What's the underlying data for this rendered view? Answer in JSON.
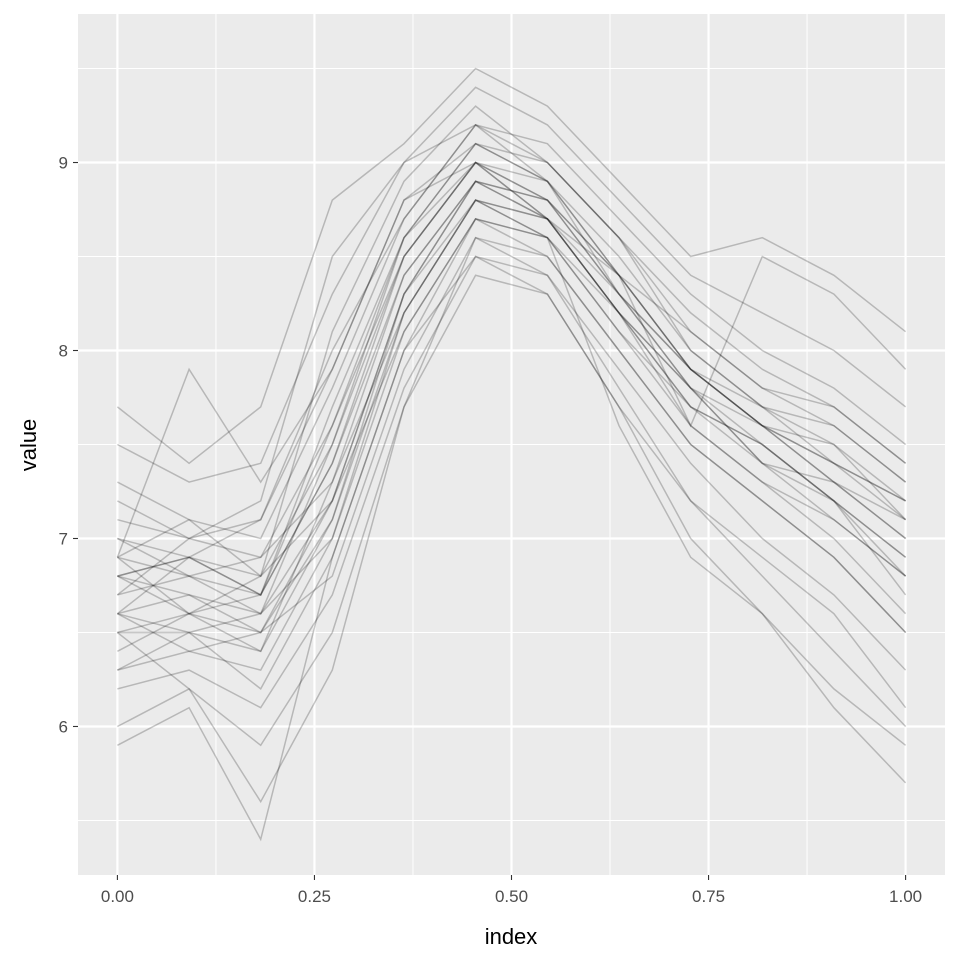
{
  "chart_data": {
    "type": "line",
    "title": "",
    "xlabel": "index",
    "ylabel": "value",
    "xlim": [
      -0.05,
      1.05
    ],
    "ylim": [
      5.21,
      9.79
    ],
    "grid": true,
    "legend": "none",
    "line_color": "#000000",
    "panel_background": "#ebebeb",
    "x_ticks": [
      0,
      0.25,
      0.5,
      0.75,
      1
    ],
    "x_tick_labels": [
      "0.00",
      "0.25",
      "0.50",
      "0.75",
      "1.00"
    ],
    "y_ticks": [
      6,
      7,
      8,
      9
    ],
    "y_tick_labels": [
      "6",
      "7",
      "8",
      "9"
    ],
    "x": [
      0,
      0.0909,
      0.1818,
      0.2727,
      0.3636,
      0.4545,
      0.5455,
      0.6364,
      0.7273,
      0.8182,
      0.9091,
      1
    ],
    "series": [
      {
        "values": [
          6.9,
          6.8,
          6.7,
          7.4,
          8.5,
          9.0,
          8.8,
          8.4,
          7.9,
          7.6,
          7.4,
          7.1
        ]
      },
      {
        "values": [
          6.5,
          6.6,
          6.4,
          7.1,
          8.2,
          8.8,
          8.7,
          8.2,
          7.7,
          7.4,
          7.2,
          6.8
        ]
      },
      {
        "values": [
          7.1,
          7.0,
          6.9,
          7.6,
          8.6,
          9.1,
          8.9,
          8.5,
          8.0,
          7.7,
          7.5,
          7.2
        ]
      },
      {
        "values": [
          6.3,
          6.5,
          6.2,
          6.9,
          8.0,
          8.7,
          8.6,
          8.1,
          7.6,
          7.3,
          7.0,
          6.6
        ]
      },
      {
        "values": [
          6.8,
          6.9,
          6.8,
          8.1,
          8.9,
          9.3,
          9.0,
          8.6,
          8.2,
          7.9,
          7.7,
          7.4
        ]
      },
      {
        "values": [
          6.6,
          6.4,
          6.5,
          6.8,
          7.9,
          8.6,
          8.5,
          8.0,
          7.5,
          7.2,
          6.9,
          6.5
        ]
      },
      {
        "values": [
          7.3,
          7.1,
          7.0,
          7.8,
          8.7,
          9.2,
          9.1,
          8.7,
          8.3,
          8.0,
          7.8,
          7.5
        ]
      },
      {
        "values": [
          6.2,
          6.3,
          6.1,
          6.7,
          7.8,
          8.5,
          8.4,
          7.9,
          7.4,
          7.0,
          6.7,
          6.3
        ]
      },
      {
        "values": [
          6.9,
          6.6,
          6.8,
          7.2,
          8.3,
          8.9,
          8.8,
          8.3,
          7.8,
          7.6,
          7.3,
          7.1
        ]
      },
      {
        "values": [
          6.7,
          6.8,
          6.6,
          7.5,
          8.5,
          9.0,
          8.7,
          8.2,
          7.7,
          7.5,
          7.2,
          6.9
        ]
      },
      {
        "values": [
          7.5,
          7.3,
          7.4,
          8.3,
          9.0,
          9.4,
          9.2,
          8.8,
          8.4,
          8.2,
          8.0,
          7.7
        ]
      },
      {
        "values": [
          6.0,
          6.2,
          5.9,
          6.5,
          7.7,
          8.4,
          8.3,
          7.7,
          7.2,
          6.8,
          6.4,
          6.0
        ]
      },
      {
        "values": [
          6.8,
          6.7,
          6.6,
          7.0,
          8.2,
          8.8,
          8.6,
          8.2,
          7.8,
          7.4,
          7.3,
          7.0
        ]
      },
      {
        "values": [
          6.6,
          6.9,
          6.7,
          7.7,
          8.6,
          9.1,
          8.9,
          8.3,
          7.9,
          7.6,
          7.4,
          7.2
        ]
      },
      {
        "values": [
          7.0,
          6.8,
          6.9,
          7.3,
          8.4,
          8.9,
          8.7,
          8.2,
          7.6,
          7.3,
          7.1,
          6.8
        ]
      },
      {
        "values": [
          6.4,
          6.6,
          6.5,
          7.2,
          8.1,
          8.7,
          8.6,
          8.1,
          7.7,
          7.5,
          7.2,
          6.7
        ]
      },
      {
        "values": [
          6.7,
          7.0,
          7.2,
          8.5,
          9.0,
          9.2,
          9.0,
          8.6,
          8.0,
          7.7,
          7.6,
          7.3
        ]
      },
      {
        "values": [
          6.5,
          6.2,
          5.6,
          6.3,
          7.7,
          8.6,
          8.4,
          7.8,
          7.2,
          6.9,
          6.6,
          6.1
        ]
      },
      {
        "values": [
          7.7,
          7.4,
          7.7,
          8.8,
          9.1,
          9.5,
          9.3,
          8.9,
          8.5,
          8.6,
          8.4,
          8.1
        ]
      },
      {
        "values": [
          6.9,
          7.9,
          7.3,
          7.9,
          8.8,
          9.0,
          8.7,
          8.4,
          8.1,
          7.8,
          7.6,
          7.3
        ]
      },
      {
        "values": [
          5.9,
          6.1,
          5.4,
          6.9,
          8.0,
          8.5,
          8.3,
          7.7,
          7.0,
          6.6,
          6.2,
          5.9
        ]
      },
      {
        "values": [
          6.8,
          6.6,
          6.7,
          7.4,
          8.4,
          8.9,
          8.8,
          8.3,
          7.9,
          7.6,
          7.3,
          7.0
        ]
      },
      {
        "values": [
          6.6,
          6.7,
          6.5,
          7.1,
          8.3,
          8.8,
          8.7,
          8.2,
          7.8,
          7.5,
          7.2,
          6.9
        ]
      },
      {
        "values": [
          7.2,
          7.0,
          7.1,
          7.9,
          8.8,
          9.1,
          9.0,
          8.6,
          8.1,
          7.8,
          7.7,
          7.4
        ]
      },
      {
        "values": [
          6.3,
          6.4,
          6.3,
          7.0,
          8.1,
          8.7,
          8.5,
          8.0,
          7.5,
          7.2,
          6.9,
          6.5
        ]
      },
      {
        "values": [
          6.8,
          6.9,
          6.7,
          7.6,
          8.5,
          9.0,
          8.9,
          8.4,
          7.9,
          7.7,
          7.4,
          7.2
        ]
      },
      {
        "values": [
          7.0,
          6.9,
          7.1,
          8.0,
          8.7,
          9.2,
          8.9,
          8.4,
          7.6,
          8.5,
          8.3,
          7.9
        ]
      },
      {
        "values": [
          6.5,
          6.5,
          6.4,
          7.3,
          8.2,
          8.8,
          8.6,
          7.6,
          6.9,
          6.6,
          6.1,
          5.7
        ]
      },
      {
        "values": [
          6.9,
          7.1,
          6.8,
          7.5,
          8.6,
          9.0,
          8.8,
          8.4,
          7.9,
          7.6,
          7.5,
          7.1
        ]
      },
      {
        "values": [
          6.6,
          6.5,
          6.6,
          7.2,
          8.3,
          8.9,
          8.7,
          8.3,
          7.8,
          7.4,
          7.1,
          6.8
        ]
      }
    ]
  }
}
